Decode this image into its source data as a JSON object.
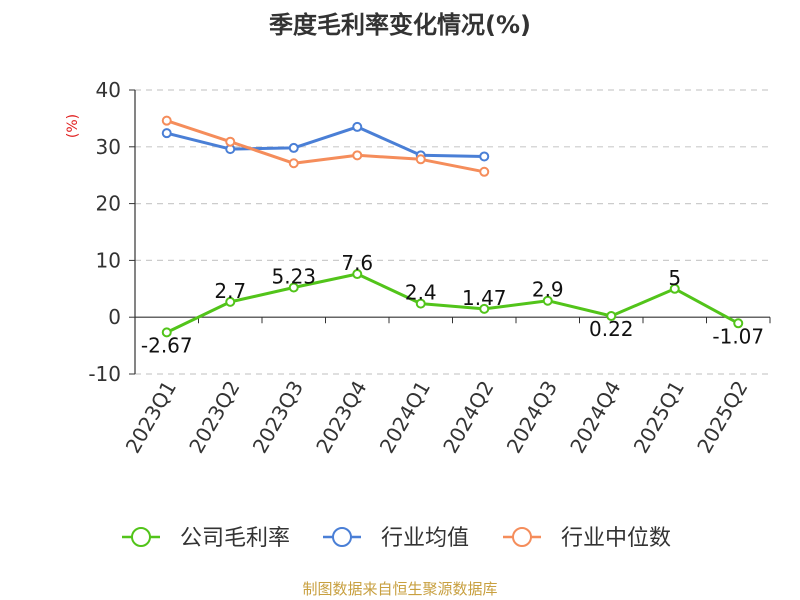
{
  "chart_data": {
    "type": "line",
    "title": "季度毛利率变化情况(%)",
    "ylabel": "(%)",
    "ylim": [
      -10,
      40
    ],
    "yticks": [
      -10,
      0,
      10,
      20,
      30,
      40
    ],
    "grid": true,
    "legend_position": "bottom",
    "categories": [
      "2023Q1",
      "2023Q2",
      "2023Q3",
      "2023Q4",
      "2024Q1",
      "2024Q2",
      "2024Q3",
      "2024Q4",
      "2025Q1",
      "2025Q2"
    ],
    "series": [
      {
        "name": "公司毛利率",
        "color": "#52c41a",
        "show_labels": true,
        "values": [
          -2.67,
          2.7,
          5.23,
          7.6,
          2.4,
          1.47,
          2.9,
          0.22,
          5,
          -1.07
        ]
      },
      {
        "name": "行业均值",
        "color": "#4a7fd6",
        "show_labels": false,
        "values": [
          32.4,
          29.6,
          29.8,
          33.5,
          28.5,
          28.3,
          null,
          null,
          null,
          null
        ]
      },
      {
        "name": "行业中位数",
        "color": "#f58d5b",
        "show_labels": false,
        "values": [
          34.6,
          30.9,
          27.1,
          28.5,
          27.8,
          25.6,
          null,
          null,
          null,
          null
        ]
      }
    ]
  },
  "footer": {
    "source": "制图数据来自恒生聚源数据库"
  }
}
